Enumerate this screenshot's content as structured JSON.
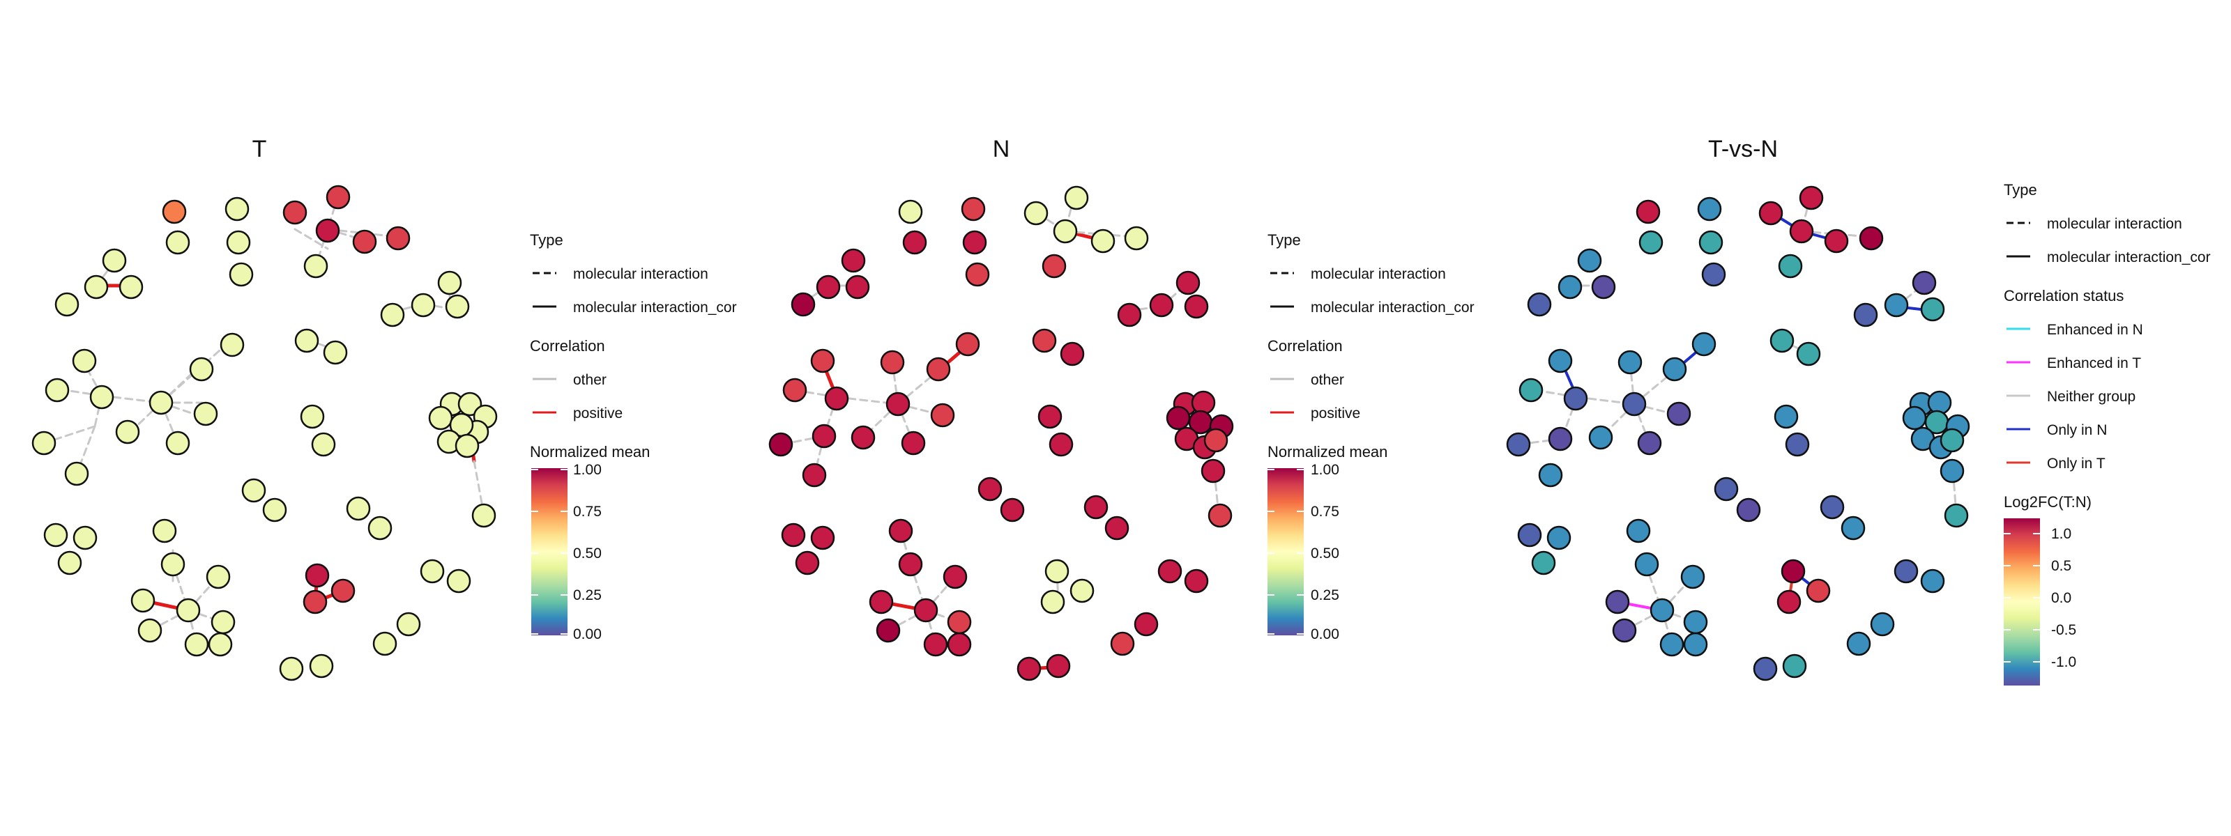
{
  "panels": [
    {
      "title": "T",
      "legend": {
        "type_title": "Type",
        "type_items": [
          "molecular interaction",
          "molecular interaction_cor"
        ],
        "corr_title": "Correlation",
        "corr_items": [
          {
            "label": "other",
            "color": "#bdbdbd"
          },
          {
            "label": "positive",
            "color": "#e31a1c"
          }
        ],
        "scale_title": "Normalized mean",
        "scale_ticks": [
          "1.00",
          "0.75",
          "0.50",
          "0.25",
          "0.00"
        ]
      }
    },
    {
      "title": "N",
      "legend": {
        "type_title": "Type",
        "type_items": [
          "molecular interaction",
          "molecular interaction_cor"
        ],
        "corr_title": "Correlation",
        "corr_items": [
          {
            "label": "other",
            "color": "#bdbdbd"
          },
          {
            "label": "positive",
            "color": "#e31a1c"
          }
        ],
        "scale_title": "Normalized mean",
        "scale_ticks": [
          "1.00",
          "0.75",
          "0.50",
          "0.25",
          "0.00"
        ]
      }
    },
    {
      "title": "T-vs-N",
      "legend": {
        "type_title": "Type",
        "type_items": [
          "molecular interaction",
          "molecular interaction_cor"
        ],
        "status_title": "Correlation status",
        "status_items": [
          {
            "label": "Enhanced in N",
            "color": "#33ddee"
          },
          {
            "label": "Enhanced in T",
            "color": "#ff33ff"
          },
          {
            "label": "Neither group",
            "color": "#c8c8c8"
          },
          {
            "label": "Only in N",
            "color": "#1d2fc6"
          },
          {
            "label": "Only in T",
            "color": "#e03a2a"
          }
        ],
        "scale_title": "Log2FC(T:N)",
        "scale_ticks": [
          "1.0",
          "0.5",
          "0.0",
          "-0.5",
          "-1.0"
        ]
      }
    }
  ],
  "colors": {
    "yellow_green": "#eef7b0",
    "orange": "#f57e4c",
    "crimson": "#c41a45",
    "red": "#dc3f4c",
    "steel_blue": "#3a8fbd",
    "teal": "#3ea8a9",
    "slate_blue": "#4f62ab",
    "purple": "#5c4ea0",
    "maroon": "#a3023f"
  }
}
